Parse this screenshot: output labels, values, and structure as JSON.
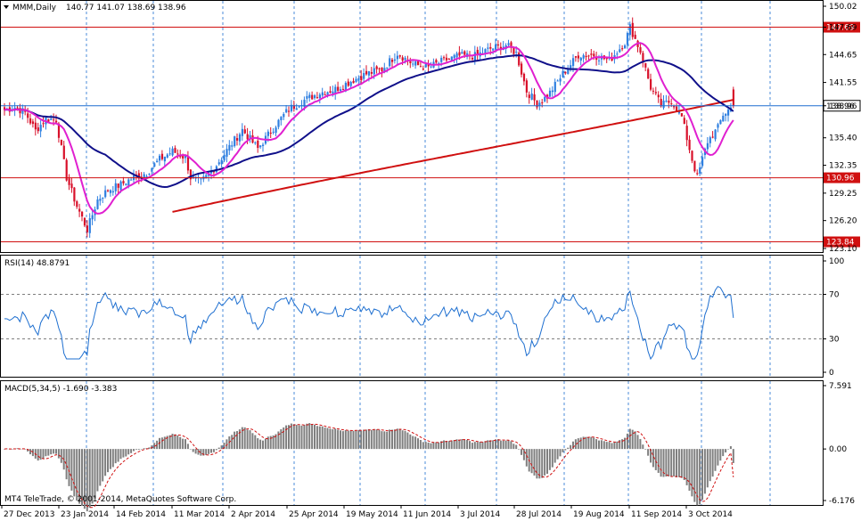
{
  "header": {
    "symbol": "MMM,Daily",
    "ohlc": "140.77 141.07 138.69 138.96"
  },
  "indicators": {
    "rsi_label": "RSI(14) 48.8791",
    "macd_label": "MACD(5,34,5) -1.690 -3.383",
    "copyright": "MT4 TeleTrade, © 2001-2014, MetaQuotes Software Corp."
  },
  "colors": {
    "background": "#ffffff",
    "grid": "#1e6fd0",
    "bull": "#2e7fe0",
    "bear": "#d8102a",
    "sma_fast": "#e020d0",
    "sma_mid": "#10108a",
    "sma_slow": "#d01010",
    "level_line": "#d01010",
    "current_price_line": "#1e6fd0",
    "rsi_line": "#1e6fd0",
    "macd_hist": "#7f7f7f",
    "macd_signal": "#d01010"
  },
  "chart_data": [
    {
      "type": "candlestick",
      "title": "MMM,Daily",
      "ylim": [
        123.1,
        150.02
      ],
      "y_ticks": [
        "150.02",
        "147.69",
        "144.65",
        "141.55",
        "138.96",
        "135.40",
        "132.35",
        "129.25",
        "126.20",
        "123.10"
      ],
      "x_labels": [
        "27 Dec 2013",
        "23 Jan 2014",
        "14 Feb 2014",
        "11 Mar 2014",
        "2 Apr 2014",
        "25 Apr 2014",
        "19 May 2014",
        "11 Jun 2014",
        "3 Jul 2014",
        "28 Jul 2014",
        "19 Aug 2014",
        "11 Sep 2014",
        "3 Oct 2014"
      ],
      "horizontal_levels": [
        {
          "label": "147.69",
          "value": 147.69
        },
        {
          "label": "130.96",
          "value": 130.96
        },
        {
          "label": "123.84",
          "value": 123.84
        }
      ],
      "current_price": {
        "label": "138.96",
        "value": 138.96
      },
      "anchors": [
        [
          0,
          138.5
        ],
        [
          4,
          138.8
        ],
        [
          8,
          138.2
        ],
        [
          12,
          136.2
        ],
        [
          16,
          137.5
        ],
        [
          20,
          137.4
        ],
        [
          24,
          131.0
        ],
        [
          28,
          127.8
        ],
        [
          32,
          125.2
        ],
        [
          36,
          128.5
        ],
        [
          40,
          129.6
        ],
        [
          45,
          130.2
        ],
        [
          50,
          131.0
        ],
        [
          55,
          131.5
        ],
        [
          60,
          133.0
        ],
        [
          65,
          133.9
        ],
        [
          70,
          133.2
        ],
        [
          72,
          131.0
        ],
        [
          76,
          130.5
        ],
        [
          80,
          131.6
        ],
        [
          86,
          134.0
        ],
        [
          92,
          136.3
        ],
        [
          98,
          134.2
        ],
        [
          104,
          136.5
        ],
        [
          110,
          138.6
        ],
        [
          116,
          139.6
        ],
        [
          122,
          140.4
        ],
        [
          128,
          140.8
        ],
        [
          134,
          141.7
        ],
        [
          140,
          142.5
        ],
        [
          146,
          143.0
        ],
        [
          152,
          144.8
        ],
        [
          158,
          143.6
        ],
        [
          164,
          143.2
        ],
        [
          170,
          144.0
        ],
        [
          176,
          144.5
        ],
        [
          182,
          144.5
        ],
        [
          188,
          145.3
        ],
        [
          194,
          145.7
        ],
        [
          198,
          144.8
        ],
        [
          202,
          140.6
        ],
        [
          206,
          139.2
        ],
        [
          210,
          140.0
        ],
        [
          216,
          142.5
        ],
        [
          222,
          144.6
        ],
        [
          228,
          144.6
        ],
        [
          234,
          144.0
        ],
        [
          240,
          146.0
        ],
        [
          242,
          147.7
        ],
        [
          246,
          145.0
        ],
        [
          250,
          141.0
        ],
        [
          254,
          139.0
        ],
        [
          258,
          139.5
        ],
        [
          262,
          137.7
        ],
        [
          266,
          133.0
        ],
        [
          268,
          131.0
        ],
        [
          272,
          135.0
        ],
        [
          276,
          136.5
        ],
        [
          278,
          138.0
        ],
        [
          282,
          138.96
        ]
      ],
      "series": [
        {
          "values_note": "",
          "name": ""
        }
      ]
    },
    {
      "type": "line",
      "title": "RSI(14) 48.8791",
      "ylim": [
        0,
        100
      ],
      "y_ticks": [
        "100",
        "70",
        "30",
        "0"
      ],
      "reference_levels": [
        70,
        30
      ],
      "last_value": 48.8791
    },
    {
      "type": "bar",
      "title": "MACD(5,34,5) -1.690 -3.383",
      "ylim": [
        -6.176,
        7.591
      ],
      "y_ticks": [
        "7.591",
        "0.00",
        "-6.176"
      ],
      "last_main": -1.69,
      "last_signal": -3.383
    }
  ]
}
